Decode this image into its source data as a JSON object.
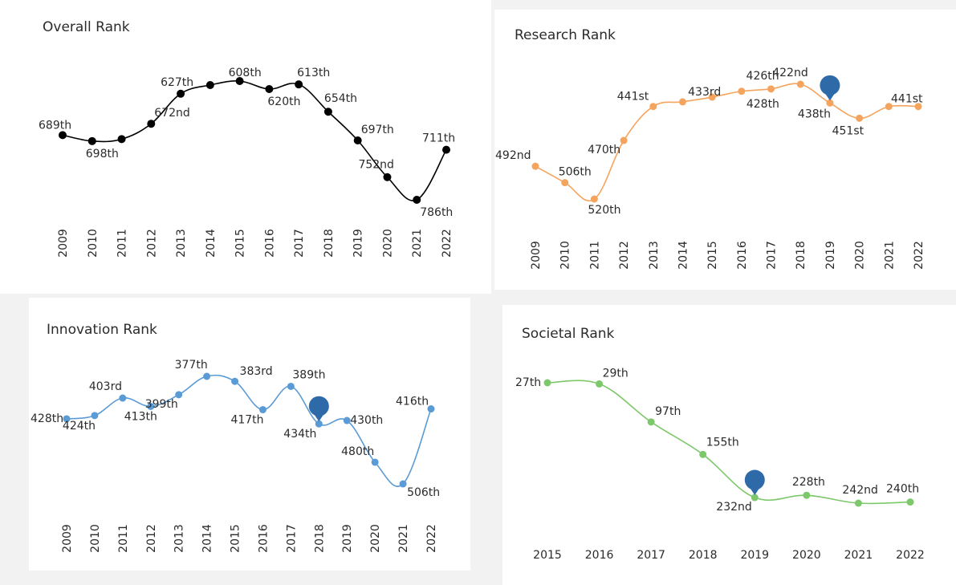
{
  "chart_data": [
    {
      "type": "line",
      "title": "Overall Rank",
      "color": "#000000",
      "x": [
        "2009",
        "2010",
        "2011",
        "2012",
        "2013",
        "2014",
        "2015",
        "2016",
        "2017",
        "2018",
        "2019",
        "2020",
        "2021",
        "2022"
      ],
      "values": [
        689,
        698,
        695,
        672,
        627,
        614,
        608,
        620,
        613,
        654,
        697,
        752,
        786,
        711
      ],
      "labels": [
        "689th",
        "698th",
        "",
        "672nd",
        "627th",
        "",
        "608th",
        "620th",
        "613th",
        "654th",
        "697th",
        "752nd",
        "786th",
        "711th"
      ],
      "rotated_x_ticks": true,
      "highlight": null
    },
    {
      "type": "line",
      "title": "Research Rank",
      "color": "#f5a45d",
      "x": [
        "2009",
        "2010",
        "2011",
        "2012",
        "2013",
        "2014",
        "2015",
        "2016",
        "2017",
        "2018",
        "2019",
        "2020",
        "2021",
        "2022"
      ],
      "values": [
        492,
        506,
        520,
        470,
        441,
        437,
        433,
        428,
        426,
        422,
        438,
        451,
        441,
        441
      ],
      "labels": [
        "492nd",
        "506th",
        "520th",
        "470th",
        "441st",
        "",
        "433rd",
        "428th",
        "426th",
        "422nd",
        "438th",
        "451st",
        "",
        "441st"
      ],
      "rotated_x_ticks": true,
      "highlight": "2019"
    },
    {
      "type": "line",
      "title": "Innovation Rank",
      "color": "#5b9bd5",
      "x": [
        "2009",
        "2010",
        "2011",
        "2012",
        "2013",
        "2014",
        "2015",
        "2016",
        "2017",
        "2018",
        "2019",
        "2020",
        "2021",
        "2022"
      ],
      "values": [
        428,
        424,
        403,
        413,
        399,
        377,
        383,
        417,
        389,
        434,
        430,
        480,
        506,
        416
      ],
      "labels": [
        "428th",
        "424th",
        "403rd",
        "413th",
        "399th",
        "377th",
        "383rd",
        "417th",
        "389th",
        "434th",
        "430th",
        "480th",
        "506th",
        "416th"
      ],
      "rotated_x_ticks": true,
      "highlight": "2018"
    },
    {
      "type": "line",
      "title": "Societal Rank",
      "color": "#7cc86a",
      "x": [
        "2015",
        "2016",
        "2017",
        "2018",
        "2019",
        "2020",
        "2021",
        "2022"
      ],
      "values": [
        27,
        29,
        97,
        155,
        232,
        228,
        242,
        240
      ],
      "labels": [
        "27th",
        "29th",
        "97th",
        "155th",
        "232nd",
        "228th",
        "242nd",
        "240th"
      ],
      "rotated_x_ticks": false,
      "highlight": "2019"
    }
  ]
}
